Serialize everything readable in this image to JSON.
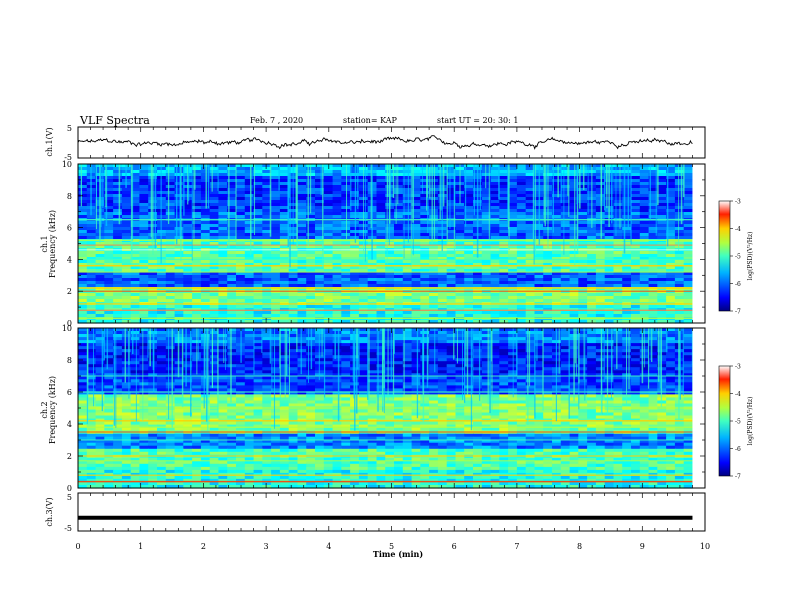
{
  "header": {
    "title": "VLF Spectra",
    "date": "Feb. 7 , 2020",
    "station": "station= KAP",
    "start": "start  UT =   20: 30: 1"
  },
  "chart_data": [
    {
      "type": "line",
      "panel": "ch1-waveform",
      "ylabel": "ch.1(V)",
      "ylim": [
        -5,
        5
      ],
      "xlim": [
        0,
        10
      ],
      "yticks": [
        "5",
        "-5"
      ],
      "note": "noisy waveform fluctuating roughly between -1.5 V and +1.5 V over 0-9.8 min"
    },
    {
      "type": "heatmap",
      "panel": "ch1-spectrogram",
      "ylabel_top": "ch.1",
      "ylabel": "Frequency (kHz)",
      "ylim": [
        0,
        10
      ],
      "yticks": [
        "0",
        "2",
        "4",
        "6",
        "8",
        "10"
      ],
      "xlim": [
        0,
        9.8
      ],
      "colorbar": {
        "label": "log(PSD)(V²/Hz)",
        "range": [
          -7,
          -3
        ],
        "ticks": [
          "-3",
          "-4",
          "-5",
          "-6",
          "-7"
        ]
      }
    },
    {
      "type": "heatmap",
      "panel": "ch2-spectrogram",
      "ylabel_top": "ch.2",
      "ylabel": "Frequency (kHz)",
      "ylim": [
        0,
        10
      ],
      "yticks": [
        "0",
        "2",
        "4",
        "6",
        "8",
        "10"
      ],
      "xlim": [
        0,
        9.8
      ],
      "colorbar": {
        "label": "log(PSD)(V²/Hz)",
        "range": [
          -7,
          -3
        ],
        "ticks": [
          "-3",
          "-4",
          "-5",
          "-6",
          "-7"
        ]
      }
    },
    {
      "type": "line",
      "panel": "ch3-waveform",
      "ylabel": "ch.3(V)",
      "ylim": [
        -5,
        5
      ],
      "yticks": [
        "5",
        "-5"
      ],
      "x": [
        0,
        9.8
      ],
      "y": [
        -1.5,
        -1.5
      ]
    }
  ],
  "xaxis": {
    "label": "Time (min)",
    "ticks": [
      "0",
      "1",
      "2",
      "3",
      "4",
      "5",
      "6",
      "7",
      "8",
      "9",
      "10"
    ]
  }
}
